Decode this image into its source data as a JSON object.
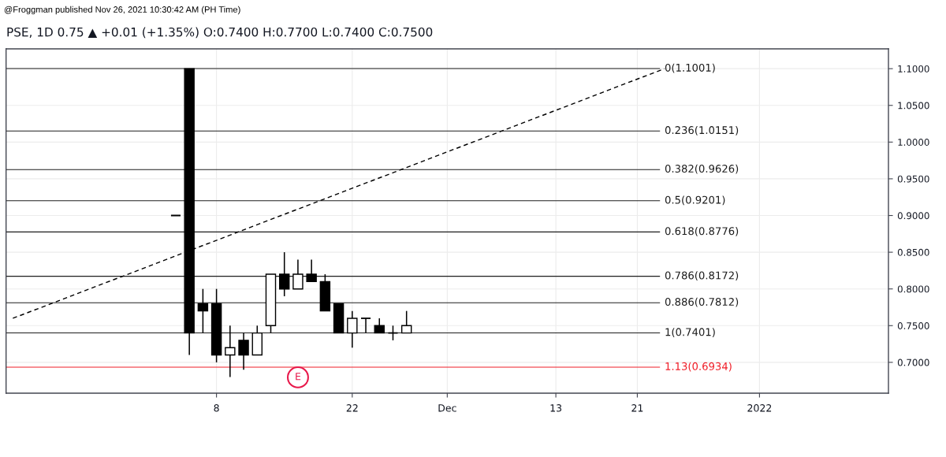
{
  "chart_data": {
    "type": "candlestick",
    "title": "PSE, 1D 0.75 ▲ +0.01 (+1.35%) O:0.7400 H:0.7700 L:0.7400 C:0.7500",
    "annotations": [
      "@Froggman published Nov 26, 2021 10:30:42 AM (PH Time)",
      "E"
    ],
    "categories": [
      null,
      null,
      null,
      null,
      null,
      null,
      null,
      null,
      null,
      null,
      null,
      null,
      null,
      null,
      null,
      "8",
      null,
      null,
      null,
      null,
      null,
      null,
      null,
      null,
      null,
      "22",
      null,
      null,
      null,
      null,
      null,
      null,
      "Dec",
      null,
      null,
      null,
      null,
      null,
      null,
      null,
      "13",
      null,
      null,
      null,
      null,
      null,
      "21",
      null,
      null,
      null,
      null,
      null,
      null,
      null,
      null,
      "2022",
      null,
      null,
      null,
      null,
      null,
      null,
      null,
      null,
      null
    ],
    "ohlc": [
      null,
      null,
      null,
      null,
      null,
      null,
      null,
      null,
      null,
      null,
      null,
      null,
      [
        0.9,
        0.9,
        0.9,
        0.9
      ],
      [
        1.1,
        1.1,
        0.71,
        0.74
      ],
      [
        0.78,
        0.8,
        0.74,
        0.77
      ],
      [
        0.78,
        0.8,
        0.7,
        0.71
      ],
      [
        0.71,
        0.75,
        0.68,
        0.72
      ],
      [
        0.73,
        0.74,
        0.69,
        0.71
      ],
      [
        0.71,
        0.75,
        0.71,
        0.74
      ],
      [
        0.75,
        0.82,
        0.74,
        0.82
      ],
      [
        0.82,
        0.85,
        0.79,
        0.8
      ],
      [
        0.8,
        0.84,
        0.8,
        0.82
      ],
      [
        0.82,
        0.84,
        0.81,
        0.81
      ],
      [
        0.81,
        0.82,
        0.77,
        0.77
      ],
      [
        0.78,
        0.78,
        0.74,
        0.74
      ],
      [
        0.74,
        0.77,
        0.72,
        0.76
      ],
      [
        0.76,
        0.76,
        0.74,
        0.76
      ],
      [
        0.75,
        0.76,
        0.74,
        0.74
      ],
      [
        0.74,
        0.75,
        0.73,
        0.74
      ],
      [
        0.74,
        0.77,
        0.74,
        0.75
      ],
      null,
      null,
      null,
      null,
      null,
      null,
      null,
      null,
      null,
      null,
      null,
      null,
      null,
      null,
      null,
      null,
      null,
      null,
      null,
      null,
      null,
      null,
      null,
      null,
      null,
      null,
      null,
      null,
      null,
      null,
      null,
      null,
      null,
      null,
      null
    ],
    "colors": [
      null,
      null,
      null,
      null,
      null,
      null,
      null,
      null,
      null,
      null,
      null,
      null,
      "#000000",
      "#000000",
      "#000000",
      "#000000",
      "#ffffff",
      "#000000",
      "#ffffff",
      "#ffffff",
      "#000000",
      "#ffffff",
      "#000000",
      "#000000",
      "#000000",
      "#ffffff",
      "#000000",
      "#000000",
      "#000000",
      "#ffffff",
      null,
      null,
      null,
      null,
      null,
      null,
      null,
      null,
      null,
      null,
      null,
      null,
      null,
      null,
      null,
      null,
      null,
      null,
      null,
      null,
      null,
      null,
      null,
      null,
      null,
      null,
      null,
      null,
      null,
      null,
      null,
      null,
      null,
      null,
      null
    ],
    "series": [
      {
        "type": "line",
        "values": [
          0.76,
          null,
          null,
          null,
          null,
          null,
          null,
          null,
          null,
          null,
          null,
          null,
          null,
          null,
          null,
          null,
          null,
          null,
          null,
          null,
          null,
          null,
          null,
          null,
          null,
          null,
          null,
          null,
          null,
          null,
          null,
          null,
          null,
          null,
          null,
          null,
          null,
          null,
          null,
          null,
          null,
          null,
          null,
          null,
          null,
          null,
          null,
          null,
          1.1,
          null,
          null,
          null,
          null,
          null,
          null,
          null,
          null,
          null,
          null,
          null,
          null,
          null,
          null,
          null,
          null
        ],
        "color": "#000000",
        "line_style": "dashed"
      }
    ],
    "ref_lines": [
      {
        "axis": "y",
        "value": 1.1001,
        "label": "0(1.1001)",
        "color": "#1e1e1e"
      },
      {
        "axis": "y",
        "value": 1.0151,
        "label": "0.236(1.0151)",
        "color": "#1e1e1e"
      },
      {
        "axis": "y",
        "value": 0.9626,
        "label": "0.382(0.9626)",
        "color": "#1e1e1e"
      },
      {
        "axis": "y",
        "value": 0.9201,
        "label": "0.5(0.9201)",
        "color": "#1e1e1e"
      },
      {
        "axis": "y",
        "value": 0.8776,
        "label": "0.618(0.8776)",
        "color": "#1e1e1e"
      },
      {
        "axis": "y",
        "value": 0.8172,
        "label": "0.786(0.8172)",
        "color": "#1e1e1e"
      },
      {
        "axis": "y",
        "value": 0.7812,
        "label": "0.886(0.7812)",
        "color": "#1e1e1e"
      },
      {
        "axis": "y",
        "value": 0.7401,
        "label": "1(0.7401)",
        "color": "#1e1e1e"
      },
      {
        "axis": "y",
        "value": 0.6934,
        "label": "1.13(0.6934)",
        "color": "#f01e28"
      }
    ],
    "ylim": [
      0.658,
      1.127
    ],
    "yticks": [
      {
        "value": 0.7,
        "label": "0.7000"
      },
      {
        "value": 0.75,
        "label": "0.7500"
      },
      {
        "value": 0.8,
        "label": "0.8000"
      },
      {
        "value": 0.85,
        "label": "0.8500"
      },
      {
        "value": 0.9,
        "label": "0.9000"
      },
      {
        "value": 0.95,
        "label": "0.9500"
      },
      {
        "value": 1.0,
        "label": "1.0000"
      },
      {
        "value": 1.05,
        "label": "1.0500"
      },
      {
        "value": 1.1,
        "label": "1.1000"
      }
    ],
    "grid": true
  }
}
